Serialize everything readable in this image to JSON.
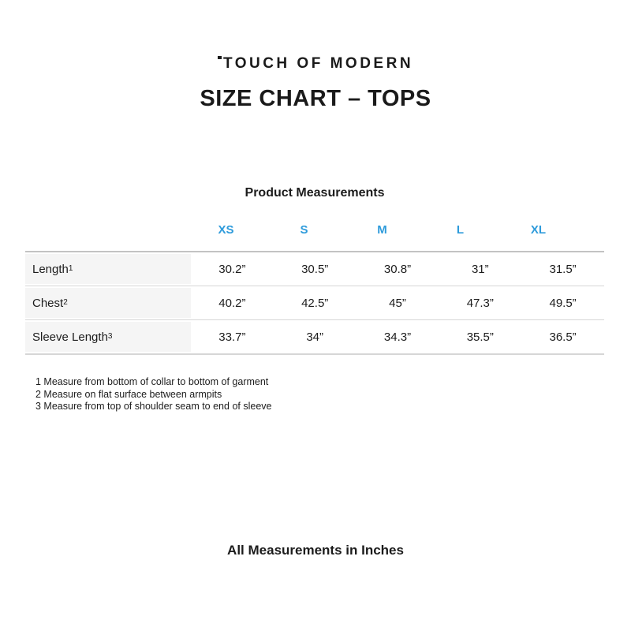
{
  "page": {
    "brand": "TOUCH OF MODERN",
    "title": "SIZE CHART – TOPS",
    "units_note": "All Measurements in Inches"
  },
  "table": {
    "title": "Product Measurements",
    "size_headers": [
      "XS",
      "S",
      "M",
      "L",
      "XL"
    ],
    "rows": [
      {
        "label": "Length",
        "sup": "1",
        "values": [
          "30.2”",
          "30.5”",
          "30.8”",
          "31”",
          "31.5”"
        ]
      },
      {
        "label": "Chest",
        "sup": "2",
        "values": [
          "40.2”",
          "42.5”",
          "45”",
          "47.3”",
          "49.5”"
        ]
      },
      {
        "label": "Sleeve Length",
        "sup": "3",
        "values": [
          "33.7”",
          "34”",
          "34.3”",
          "35.5”",
          "36.5”"
        ]
      }
    ],
    "footnotes": [
      "1 Measure from bottom of collar to bottom of garment",
      "2 Measure on flat surface between armpits",
      "3 Measure from top of shoulder seam to end of sleeve"
    ]
  },
  "colors": {
    "accent_blue": "#2e9bdb",
    "label_cell_bg": "#f5f5f5",
    "border_top": "#c3c3c3",
    "border_inner": "#d6d6d6",
    "text": "#1c1c1c"
  }
}
